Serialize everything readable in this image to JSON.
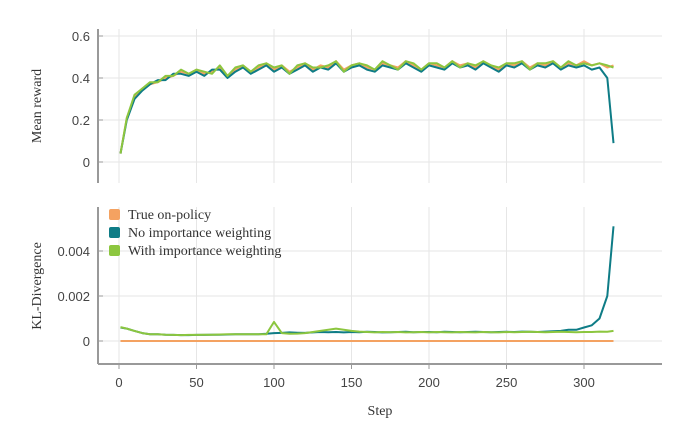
{
  "chart_data": [
    {
      "type": "line",
      "ylabel": "Mean reward",
      "xlabel": "",
      "xlim": [
        -10,
        350
      ],
      "ylim": [
        -0.1,
        0.65
      ],
      "yticks": [
        "0",
        "0.2",
        "0.4",
        "0.6"
      ],
      "ytick_values": [
        0,
        0.2,
        0.4,
        0.6
      ],
      "grid": true,
      "x": [
        1,
        5,
        10,
        15,
        20,
        25,
        30,
        35,
        40,
        45,
        50,
        55,
        60,
        65,
        70,
        75,
        80,
        85,
        90,
        95,
        100,
        105,
        110,
        115,
        120,
        125,
        130,
        135,
        140,
        145,
        150,
        155,
        160,
        165,
        170,
        175,
        180,
        185,
        190,
        195,
        200,
        205,
        210,
        215,
        220,
        225,
        230,
        235,
        240,
        245,
        250,
        255,
        260,
        265,
        270,
        275,
        280,
        285,
        290,
        295,
        300,
        305,
        310,
        315,
        319
      ],
      "series": [
        {
          "name": "True on-policy",
          "color": "#f4a261",
          "values": [
            0.04,
            0.21,
            0.31,
            0.35,
            0.37,
            0.38,
            0.4,
            0.41,
            0.43,
            0.42,
            0.44,
            0.42,
            0.43,
            0.45,
            0.41,
            0.44,
            0.46,
            0.43,
            0.45,
            0.47,
            0.44,
            0.46,
            0.43,
            0.45,
            0.47,
            0.44,
            0.46,
            0.45,
            0.48,
            0.44,
            0.46,
            0.47,
            0.45,
            0.44,
            0.47,
            0.46,
            0.45,
            0.48,
            0.46,
            0.44,
            0.47,
            0.46,
            0.45,
            0.48,
            0.46,
            0.47,
            0.45,
            0.48,
            0.46,
            0.44,
            0.47,
            0.46,
            0.48,
            0.45,
            0.47,
            0.46,
            0.48,
            0.45,
            0.47,
            0.46,
            0.48,
            0.46,
            0.47,
            0.45,
            0.46
          ]
        },
        {
          "name": "No importance weighting",
          "color": "#0e7c86",
          "values": [
            0.04,
            0.2,
            0.3,
            0.34,
            0.37,
            0.39,
            0.39,
            0.42,
            0.42,
            0.41,
            0.43,
            0.41,
            0.44,
            0.44,
            0.4,
            0.43,
            0.45,
            0.42,
            0.44,
            0.46,
            0.43,
            0.45,
            0.42,
            0.44,
            0.46,
            0.43,
            0.45,
            0.44,
            0.47,
            0.43,
            0.45,
            0.46,
            0.44,
            0.43,
            0.46,
            0.45,
            0.44,
            0.47,
            0.45,
            0.43,
            0.46,
            0.45,
            0.44,
            0.47,
            0.45,
            0.46,
            0.44,
            0.47,
            0.45,
            0.43,
            0.46,
            0.45,
            0.47,
            0.44,
            0.46,
            0.45,
            0.47,
            0.44,
            0.46,
            0.45,
            0.46,
            0.44,
            0.45,
            0.4,
            0.09
          ]
        },
        {
          "name": "With importance weighting",
          "color": "#8cc63f",
          "values": [
            0.04,
            0.21,
            0.32,
            0.35,
            0.38,
            0.38,
            0.41,
            0.41,
            0.44,
            0.42,
            0.44,
            0.43,
            0.42,
            0.46,
            0.41,
            0.45,
            0.46,
            0.43,
            0.46,
            0.47,
            0.45,
            0.46,
            0.42,
            0.46,
            0.47,
            0.45,
            0.45,
            0.46,
            0.48,
            0.43,
            0.46,
            0.47,
            0.46,
            0.44,
            0.48,
            0.46,
            0.44,
            0.48,
            0.47,
            0.44,
            0.47,
            0.47,
            0.45,
            0.48,
            0.45,
            0.47,
            0.46,
            0.48,
            0.46,
            0.45,
            0.47,
            0.47,
            0.48,
            0.44,
            0.47,
            0.47,
            0.48,
            0.45,
            0.48,
            0.46,
            0.47,
            0.46,
            0.47,
            0.46,
            0.45
          ]
        }
      ]
    },
    {
      "type": "line",
      "ylabel": "KL-Divergence",
      "xlabel": "Step",
      "xlim": [
        -10,
        350
      ],
      "ylim": [
        -0.001,
        0.0059
      ],
      "yticks": [
        "0",
        "0.002",
        "0.004"
      ],
      "ytick_values": [
        0,
        0.002,
        0.004
      ],
      "xticks": [
        "0",
        "50",
        "100",
        "150",
        "200",
        "250",
        "300"
      ],
      "xtick_values": [
        0,
        50,
        100,
        150,
        200,
        250,
        300
      ],
      "grid": true,
      "legend_position": "top-left",
      "legend": [
        "True on-policy",
        "No importance weighting",
        "With importance weighting"
      ],
      "x": [
        1,
        5,
        10,
        15,
        20,
        25,
        30,
        35,
        40,
        45,
        50,
        55,
        60,
        65,
        70,
        75,
        80,
        85,
        90,
        95,
        100,
        105,
        110,
        115,
        120,
        125,
        130,
        135,
        140,
        145,
        150,
        155,
        160,
        165,
        170,
        175,
        180,
        185,
        190,
        195,
        200,
        205,
        210,
        215,
        220,
        225,
        230,
        235,
        240,
        245,
        250,
        255,
        260,
        265,
        270,
        275,
        280,
        285,
        290,
        295,
        300,
        305,
        310,
        315,
        319
      ],
      "series": [
        {
          "name": "True on-policy",
          "color": "#f4a261",
          "values": [
            0,
            0,
            0,
            0,
            0,
            0,
            0,
            0,
            0,
            0,
            0,
            0,
            0,
            0,
            0,
            0,
            0,
            0,
            0,
            0,
            0,
            0,
            0,
            0,
            0,
            0,
            0,
            0,
            0,
            0,
            0,
            0,
            0,
            0,
            0,
            0,
            0,
            0,
            0,
            0,
            0,
            0,
            0,
            0,
            0,
            0,
            0,
            0,
            0,
            0,
            0,
            0,
            0,
            0,
            0,
            0,
            0,
            0,
            0,
            0,
            0,
            0,
            0,
            0,
            0
          ]
        },
        {
          "name": "No importance weighting",
          "color": "#0e7c86",
          "values": [
            0.0006,
            0.00055,
            0.00045,
            0.00035,
            0.0003,
            0.0003,
            0.00028,
            0.00027,
            0.00026,
            0.00026,
            0.00027,
            0.00027,
            0.00028,
            0.00028,
            0.00029,
            0.0003,
            0.0003,
            0.0003,
            0.0003,
            0.00032,
            0.00035,
            0.00036,
            0.00038,
            0.00037,
            0.00036,
            0.00038,
            0.0004,
            0.00039,
            0.0004,
            0.00038,
            0.0004,
            0.00039,
            0.00041,
            0.0004,
            0.00038,
            0.00039,
            0.0004,
            0.00041,
            0.00039,
            0.0004,
            0.0004,
            0.00039,
            0.00041,
            0.0004,
            0.00039,
            0.0004,
            0.00041,
            0.0004,
            0.00039,
            0.0004,
            0.00041,
            0.0004,
            0.00042,
            0.00041,
            0.0004,
            0.00042,
            0.00043,
            0.00045,
            0.0005,
            0.0005,
            0.0006,
            0.0007,
            0.001,
            0.002,
            0.0051
          ]
        },
        {
          "name": "With importance weighting",
          "color": "#8cc63f",
          "values": [
            0.00062,
            0.00055,
            0.00045,
            0.00035,
            0.0003,
            0.0003,
            0.00028,
            0.00027,
            0.00026,
            0.00027,
            0.00027,
            0.00028,
            0.00028,
            0.00029,
            0.0003,
            0.0003,
            0.0003,
            0.0003,
            0.0003,
            0.0003,
            0.00085,
            0.00035,
            0.00032,
            0.00033,
            0.00035,
            0.0004,
            0.00045,
            0.0005,
            0.00055,
            0.0005,
            0.00045,
            0.00042,
            0.0004,
            0.00038,
            0.0004,
            0.00039,
            0.0004,
            0.00038,
            0.00039,
            0.0004,
            0.00038,
            0.0004,
            0.00039,
            0.00038,
            0.0004,
            0.00039,
            0.00038,
            0.0004,
            0.00039,
            0.00038,
            0.0004,
            0.00039,
            0.0004,
            0.00041,
            0.0004,
            0.00039,
            0.0004,
            0.00041,
            0.0004,
            0.00039,
            0.0004,
            0.0004,
            0.00042,
            0.00041,
            0.00045
          ]
        }
      ]
    }
  ]
}
